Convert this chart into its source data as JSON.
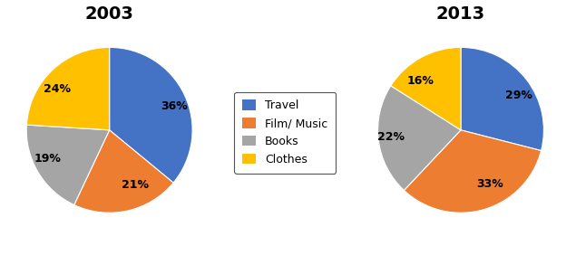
{
  "pie2003": {
    "title": "2003",
    "values": [
      36,
      21,
      19,
      24
    ],
    "labels": [
      "36%",
      "21%",
      "19%",
      "24%"
    ],
    "colors": [
      "#4472C4",
      "#ED7D31",
      "#A5A5A5",
      "#FFC000"
    ],
    "startangle": 90
  },
  "pie2013": {
    "title": "2013",
    "values": [
      29,
      33,
      22,
      16
    ],
    "labels": [
      "29%",
      "33%",
      "22%",
      "16%"
    ],
    "colors": [
      "#4472C4",
      "#ED7D31",
      "#A5A5A5",
      "#FFC000"
    ],
    "startangle": 90
  },
  "legend_labels": [
    "Travel",
    "Film/ Music",
    "Books",
    "Clothes"
  ],
  "legend_colors": [
    "#4472C4",
    "#ED7D31",
    "#A5A5A5",
    "#FFC000"
  ],
  "title_fontsize": 14,
  "label_fontsize": 9,
  "background_color": "#ffffff"
}
